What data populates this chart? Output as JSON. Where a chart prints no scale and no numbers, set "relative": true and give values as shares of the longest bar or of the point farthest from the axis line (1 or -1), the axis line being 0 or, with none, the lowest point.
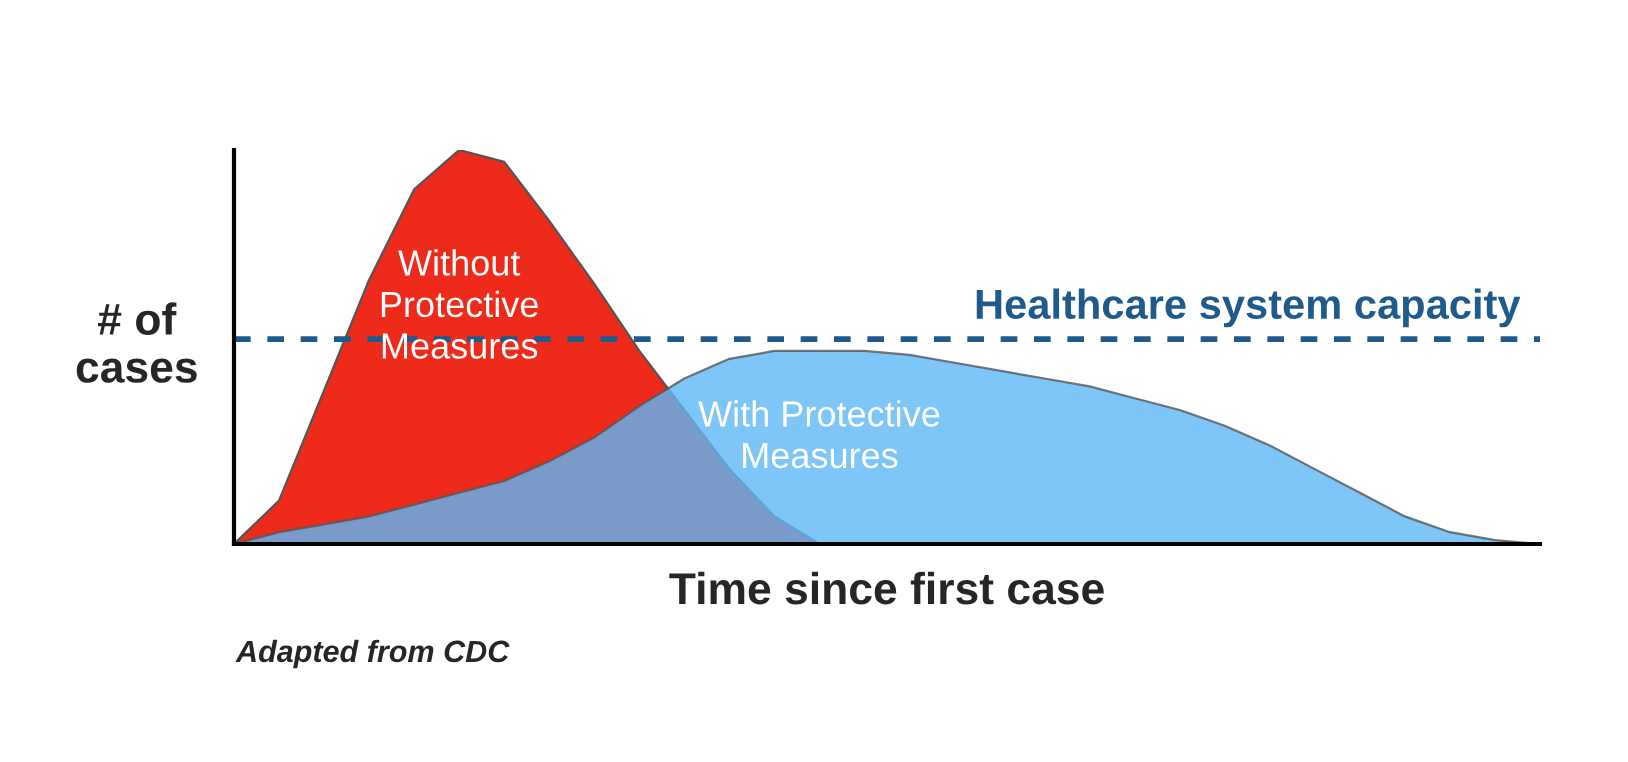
{
  "chart_data": {
    "type": "area",
    "relative": true,
    "xlabel": "Time since first case",
    "ylabel": "# of\ncases",
    "categories": [
      null,
      null,
      null,
      null,
      null,
      null,
      null,
      null,
      null,
      null,
      null,
      null,
      null,
      null,
      null,
      null,
      null,
      null,
      null,
      null,
      null,
      null,
      null,
      null,
      null,
      null,
      null,
      null,
      null,
      null
    ],
    "series": [
      {
        "name": "Without\nProtective\nMeasures",
        "color": "#ee2a1b",
        "values": [
          0,
          0.11,
          0.39,
          0.67,
          0.9,
          1,
          0.97,
          0.82,
          0.66,
          0.49,
          0.34,
          0.19,
          0.07,
          0,
          null,
          null,
          null,
          null,
          null,
          null,
          null,
          null,
          null,
          null,
          null,
          null,
          null,
          null,
          null,
          null
        ]
      },
      {
        "name": "With Protective\nMeasures",
        "color": "#5cb8f5",
        "values": [
          0,
          0.03,
          0.05,
          0.07,
          0.1,
          0.13,
          0.16,
          0.21,
          0.27,
          0.35,
          0.42,
          0.47,
          0.49,
          0.49,
          0.49,
          0.48,
          0.46,
          0.44,
          0.42,
          0.4,
          0.37,
          0.34,
          0.3,
          0.25,
          0.19,
          0.13,
          0.07,
          0.03,
          0.01,
          0
        ]
      }
    ],
    "ref_lines": [
      {
        "axis": "y",
        "value": 0.52,
        "label": "Healthcare system capacity",
        "color": "#1f5a8c",
        "line_style": "dashed"
      }
    ],
    "annotations": [
      "Adapted from CDC"
    ],
    "legend": false
  }
}
